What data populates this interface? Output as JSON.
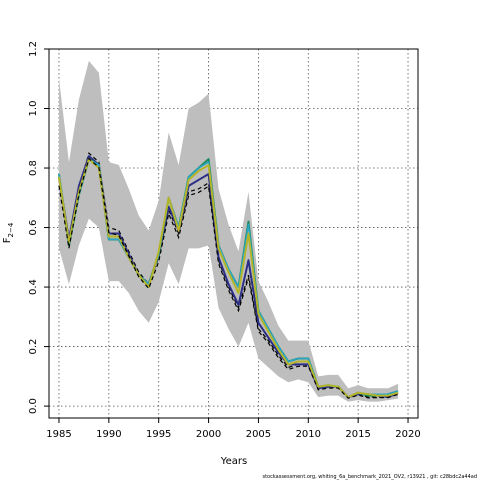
{
  "chart_data": {
    "type": "line",
    "title": "",
    "xlabel": "Years",
    "ylabel_main": "F",
    "ylabel_sub": "2−4",
    "xlim": [
      1984,
      2021
    ],
    "ylim": [
      -0.04,
      1.2
    ],
    "x_ticks": [
      1985,
      1990,
      1995,
      2000,
      2005,
      2010,
      2015,
      2020
    ],
    "y_ticks": [
      0.0,
      0.2,
      0.4,
      0.6,
      0.8,
      1.0,
      1.2
    ],
    "grid": true,
    "x": [
      1985,
      1986,
      1987,
      1988,
      1989,
      1990,
      1991,
      1992,
      1993,
      1994,
      1995,
      1996,
      1997,
      1998,
      1999,
      2000,
      2001,
      2002,
      2003,
      2004,
      2005,
      2006,
      2007,
      2008,
      2009,
      2010,
      2011,
      2012,
      2013,
      2014,
      2015,
      2016,
      2017,
      2018,
      2019
    ],
    "band": {
      "color": "#bebebe",
      "lower": [
        0.53,
        0.41,
        0.54,
        0.63,
        0.6,
        0.42,
        0.42,
        0.38,
        0.32,
        0.28,
        0.35,
        0.48,
        0.41,
        0.53,
        0.53,
        0.54,
        0.33,
        0.26,
        0.2,
        0.28,
        0.16,
        0.13,
        0.1,
        0.08,
        0.09,
        0.08,
        0.03,
        0.035,
        0.035,
        0.015,
        0.02,
        0.015,
        0.015,
        0.02,
        0.025
      ],
      "upper": [
        1.1,
        0.82,
        1.03,
        1.16,
        1.12,
        0.82,
        0.81,
        0.73,
        0.64,
        0.59,
        0.69,
        0.92,
        0.81,
        1.0,
        1.02,
        1.05,
        0.73,
        0.61,
        0.52,
        0.72,
        0.42,
        0.35,
        0.27,
        0.22,
        0.22,
        0.22,
        0.1,
        0.105,
        0.105,
        0.06,
        0.07,
        0.06,
        0.06,
        0.06,
        0.075
      ]
    },
    "series": [
      {
        "color": "#000000",
        "dashed": true,
        "width": 1.2,
        "values": [
          0.76,
          0.55,
          0.73,
          0.85,
          0.82,
          0.6,
          0.59,
          0.52,
          0.45,
          0.41,
          0.5,
          0.66,
          0.58,
          0.72,
          0.73,
          0.75,
          0.49,
          0.4,
          0.33,
          0.44,
          0.26,
          0.22,
          0.17,
          0.13,
          0.14,
          0.14,
          0.06,
          0.065,
          0.065,
          0.03,
          0.04,
          0.03,
          0.03,
          0.03,
          0.04
        ]
      },
      {
        "color": "#2c2f86",
        "dashed": false,
        "width": 2,
        "values": [
          0.77,
          0.56,
          0.74,
          0.84,
          0.81,
          0.58,
          0.58,
          0.51,
          0.44,
          0.41,
          0.51,
          0.67,
          0.59,
          0.74,
          0.76,
          0.78,
          0.5,
          0.41,
          0.34,
          0.49,
          0.28,
          0.23,
          0.18,
          0.14,
          0.14,
          0.14,
          0.06,
          0.065,
          0.065,
          0.03,
          0.04,
          0.04,
          0.035,
          0.03,
          0.045
        ]
      },
      {
        "color": "#1b8a5a",
        "dashed": false,
        "width": 2,
        "values": [
          0.78,
          0.54,
          0.71,
          0.83,
          0.81,
          0.56,
          0.56,
          0.5,
          0.44,
          0.41,
          0.51,
          0.7,
          0.6,
          0.77,
          0.8,
          0.83,
          0.54,
          0.46,
          0.4,
          0.62,
          0.32,
          0.26,
          0.2,
          0.15,
          0.16,
          0.16,
          0.065,
          0.07,
          0.065,
          0.03,
          0.045,
          0.035,
          0.035,
          0.04,
          0.05
        ]
      },
      {
        "color": "#2aa6c9",
        "dashed": false,
        "width": 1.5,
        "values": [
          0.78,
          0.55,
          0.71,
          0.83,
          0.81,
          0.56,
          0.56,
          0.5,
          0.44,
          0.41,
          0.51,
          0.7,
          0.6,
          0.77,
          0.8,
          0.82,
          0.54,
          0.46,
          0.4,
          0.61,
          0.32,
          0.26,
          0.2,
          0.15,
          0.16,
          0.16,
          0.065,
          0.07,
          0.065,
          0.03,
          0.045,
          0.04,
          0.04,
          0.04,
          0.05
        ]
      },
      {
        "color": "#b5b52a",
        "dashed": false,
        "width": 2,
        "values": [
          0.77,
          0.55,
          0.72,
          0.83,
          0.8,
          0.57,
          0.57,
          0.5,
          0.44,
          0.4,
          0.52,
          0.7,
          0.59,
          0.76,
          0.79,
          0.81,
          0.53,
          0.45,
          0.38,
          0.58,
          0.31,
          0.25,
          0.19,
          0.14,
          0.15,
          0.15,
          0.065,
          0.07,
          0.065,
          0.03,
          0.045,
          0.04,
          0.035,
          0.035,
          0.045
        ]
      }
    ]
  },
  "credit": "stockassessment.org,  whiting_6a_benchmark_2021_OV2,  r13921 ,  git: c28bdc2a44ad"
}
